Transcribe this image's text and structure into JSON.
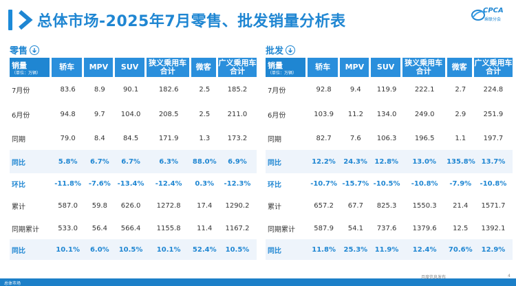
{
  "header": {
    "title": "总体市场-2025年7月零售、批发销量分析表",
    "logo_text": "CPCA",
    "logo_sub": "乘联分会",
    "accent_color": "#1f86d2"
  },
  "unit_label": "销量",
  "unit_sub": "（单位：万辆）",
  "columns": [
    "轿车",
    "MPV",
    "SUV",
    "狭义乘用车合计",
    "微客",
    "广义乘用车合计"
  ],
  "retail": {
    "label": "零售",
    "rows": [
      {
        "label": "7月份",
        "values": [
          "83.6",
          "8.9",
          "90.1",
          "182.6",
          "2.5",
          "185.2"
        ]
      },
      {
        "label": "6月份",
        "values": [
          "94.8",
          "9.7",
          "104.0",
          "208.5",
          "2.5",
          "211.0"
        ]
      },
      {
        "label": "同期",
        "values": [
          "79.0",
          "8.4",
          "84.5",
          "171.9",
          "1.3",
          "173.2"
        ]
      },
      {
        "label": "同比",
        "values": [
          "5.8%",
          "6.7%",
          "6.7%",
          "6.3%",
          "88.0%",
          "6.9%"
        ]
      },
      {
        "label": "环比",
        "values": [
          "-11.8%",
          "-7.6%",
          "-13.4%",
          "-12.4%",
          "0.3%",
          "-12.3%"
        ]
      },
      {
        "label": "累计",
        "values": [
          "587.0",
          "59.8",
          "626.0",
          "1272.8",
          "17.4",
          "1290.2"
        ]
      },
      {
        "label": "同期累计",
        "values": [
          "533.0",
          "56.4",
          "566.4",
          "1155.8",
          "11.4",
          "1167.2"
        ]
      },
      {
        "label": "同比",
        "values": [
          "10.1%",
          "6.0%",
          "10.5%",
          "10.1%",
          "52.4%",
          "10.5%"
        ]
      }
    ]
  },
  "wholesale": {
    "label": "批发",
    "rows": [
      {
        "label": "7月份",
        "values": [
          "92.8",
          "9.4",
          "119.9",
          "222.1",
          "2.7",
          "224.8"
        ]
      },
      {
        "label": "6月份",
        "values": [
          "103.9",
          "11.2",
          "134.0",
          "249.0",
          "2.9",
          "251.9"
        ]
      },
      {
        "label": "同期",
        "values": [
          "82.7",
          "7.6",
          "106.3",
          "196.5",
          "1.1",
          "197.7"
        ]
      },
      {
        "label": "同比",
        "values": [
          "12.2%",
          "24.3%",
          "12.8%",
          "13.0%",
          "135.8%",
          "13.7%"
        ]
      },
      {
        "label": "环比",
        "values": [
          "-10.7%",
          "-15.7%",
          "-10.5%",
          "-10.8%",
          "-7.9%",
          "-10.8%"
        ]
      },
      {
        "label": "累计",
        "values": [
          "657.2",
          "67.7",
          "825.3",
          "1550.3",
          "21.4",
          "1571.7"
        ]
      },
      {
        "label": "同期累计",
        "values": [
          "587.9",
          "54.1",
          "737.6",
          "1379.6",
          "12.5",
          "1392.1"
        ]
      },
      {
        "label": "同比",
        "values": [
          "11.8%",
          "25.3%",
          "11.9%",
          "12.4%",
          "70.6%",
          "12.9%"
        ]
      }
    ]
  },
  "footer": {
    "label": "总体市场",
    "note": "月度信息发布",
    "page": "4"
  }
}
